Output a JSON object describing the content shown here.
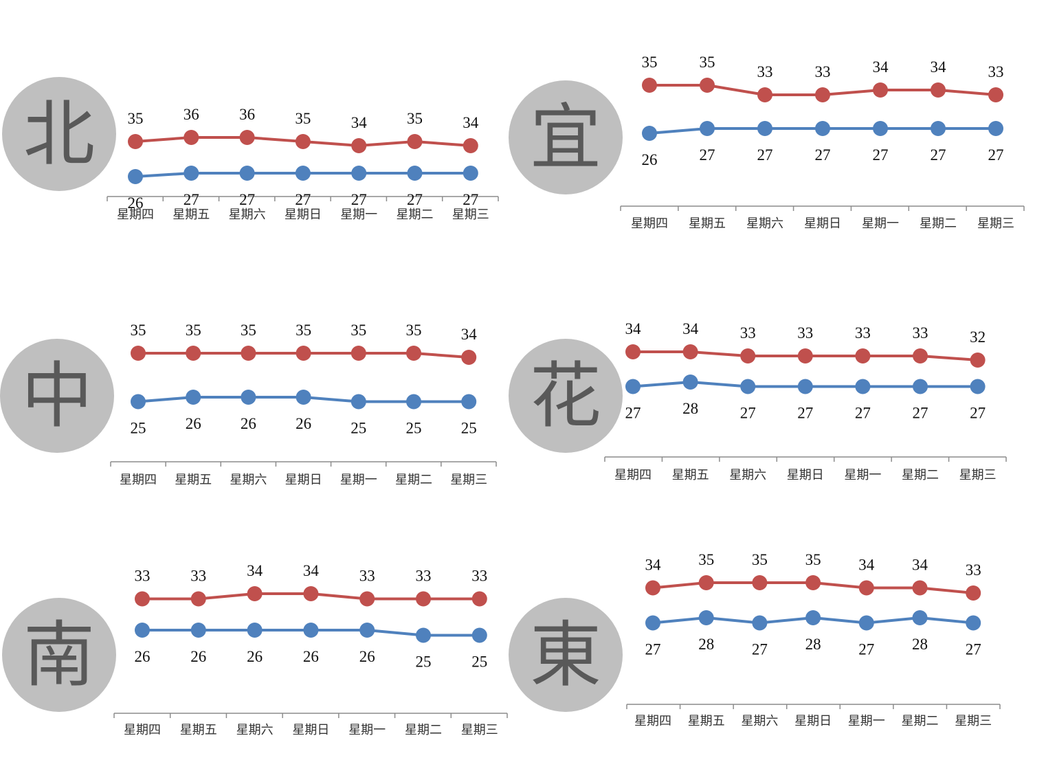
{
  "colors": {
    "high": "#c0504d",
    "low": "#4f81bd",
    "badge": "#bfbfbf",
    "axis": "#8c8c8c"
  },
  "chart_data": [
    {
      "type": "line",
      "badge": "北",
      "categories": [
        "星期四",
        "星期五",
        "星期六",
        "星期日",
        "星期一",
        "星期二",
        "星期三"
      ],
      "series": [
        {
          "values": [
            35,
            36,
            36,
            35,
            34,
            35,
            34
          ]
        },
        {
          "values": [
            26,
            27,
            27,
            27,
            27,
            27,
            27
          ]
        }
      ]
    },
    {
      "type": "line",
      "badge": "宜",
      "categories": [
        "星期四",
        "星期五",
        "星期六",
        "星期日",
        "星期一",
        "星期二",
        "星期三"
      ],
      "series": [
        {
          "values": [
            35,
            35,
            33,
            33,
            34,
            34,
            33
          ]
        },
        {
          "values": [
            26,
            27,
            27,
            27,
            27,
            27,
            27
          ]
        }
      ]
    },
    {
      "type": "line",
      "badge": "中",
      "categories": [
        "星期四",
        "星期五",
        "星期六",
        "星期日",
        "星期一",
        "星期二",
        "星期三"
      ],
      "series": [
        {
          "values": [
            35,
            35,
            35,
            35,
            35,
            35,
            34
          ]
        },
        {
          "values": [
            25,
            26,
            26,
            26,
            25,
            25,
            25
          ]
        }
      ]
    },
    {
      "type": "line",
      "badge": "花",
      "categories": [
        "星期四",
        "星期五",
        "星期六",
        "星期日",
        "星期一",
        "星期二",
        "星期三"
      ],
      "series": [
        {
          "values": [
            34,
            34,
            33,
            33,
            33,
            33,
            32
          ]
        },
        {
          "values": [
            27,
            28,
            27,
            27,
            27,
            27,
            27
          ]
        }
      ]
    },
    {
      "type": "line",
      "badge": "南",
      "categories": [
        "星期四",
        "星期五",
        "星期六",
        "星期日",
        "星期一",
        "星期二",
        "星期三"
      ],
      "series": [
        {
          "values": [
            33,
            33,
            34,
            34,
            33,
            33,
            33
          ]
        },
        {
          "values": [
            26,
            26,
            26,
            26,
            26,
            25,
            25
          ]
        }
      ]
    },
    {
      "type": "line",
      "badge": "東",
      "categories": [
        "星期四",
        "星期五",
        "星期六",
        "星期日",
        "星期一",
        "星期二",
        "星期三"
      ],
      "series": [
        {
          "values": [
            34,
            35,
            35,
            35,
            34,
            34,
            33
          ]
        },
        {
          "values": [
            27,
            28,
            27,
            28,
            27,
            28,
            27
          ]
        }
      ]
    }
  ]
}
